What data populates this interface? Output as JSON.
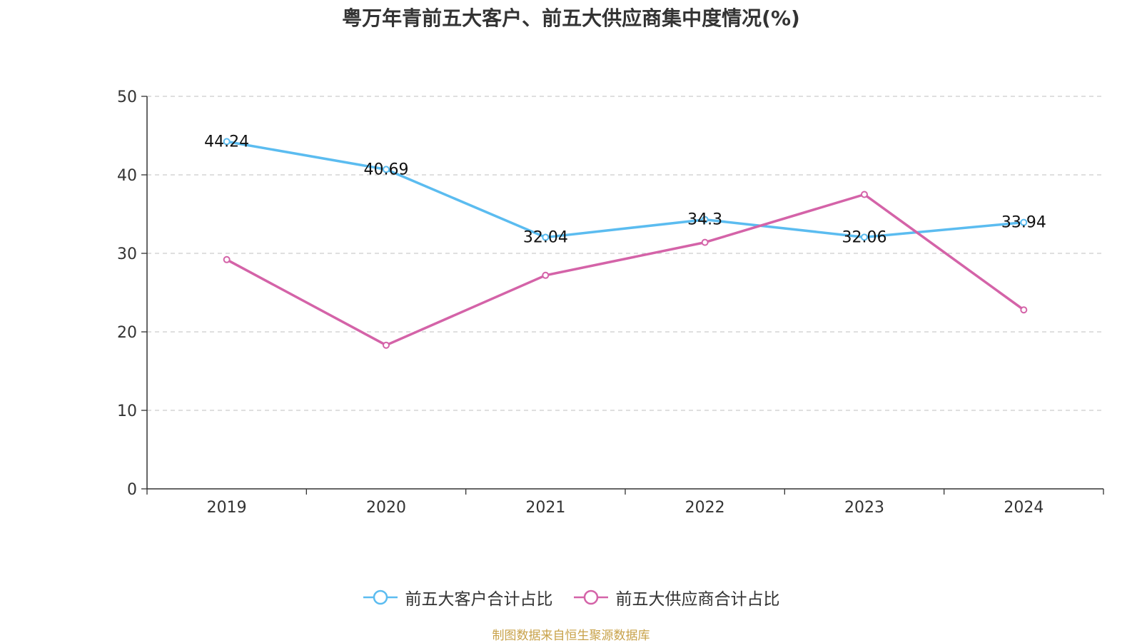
{
  "chart_data": {
    "type": "line",
    "title": "粤万年青前五大客户、前五大供应商集中度情况(%)",
    "categories": [
      "2019",
      "2020",
      "2021",
      "2022",
      "2023",
      "2024"
    ],
    "ylim": [
      0,
      50
    ],
    "yticks": [
      0,
      10,
      20,
      30,
      40,
      50
    ],
    "grid": true,
    "legend_position": "bottom",
    "series": [
      {
        "name": "前五大客户合计占比",
        "color": "#5bbcf0",
        "values": [
          44.24,
          40.69,
          32.04,
          34.3,
          32.06,
          33.94
        ],
        "labels": [
          "44.24",
          "40.69",
          "32.04",
          "34.3",
          "32.06",
          "33.94"
        ]
      },
      {
        "name": "前五大供应商合计占比",
        "color": "#d463a8",
        "values": [
          29.2,
          18.3,
          27.2,
          31.4,
          37.5,
          22.8
        ],
        "labels": []
      }
    ]
  },
  "footer": {
    "source": "制图数据来自恒生聚源数据库"
  }
}
